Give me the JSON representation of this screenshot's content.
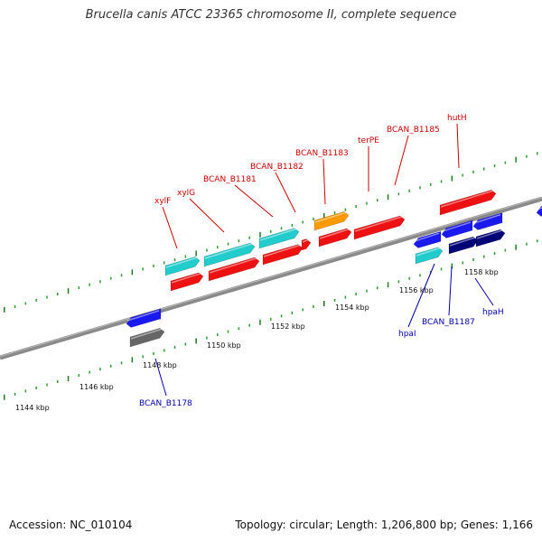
{
  "title": "Brucella canis ATCC 23365 chromosome II, complete sequence",
  "footer": {
    "accession": "Accession: NC_010104",
    "summary": "Topology: circular; Length: 1,206,800 bp; Genes: 1,166"
  },
  "colors": {
    "backbone": "#8a8a8a",
    "tick_major": "#1f7a1f",
    "tick_minor": "#2f9a2f",
    "label_top": "#cc0000",
    "label_bottom": "#0000aa",
    "cyan": "#22cccc",
    "red": "#ee1111",
    "orange": "#ff9900",
    "blue": "#1a1aee",
    "navy": "#000077",
    "gray": "#666666"
  },
  "ruler_labels": [
    "1144 kbp",
    "1146 kbp",
    "1148 kbp",
    "1150 kbp",
    "1152 kbp",
    "1154 kbp",
    "1156 kbp",
    "1158 kbp"
  ],
  "top_labels": [
    "xylF",
    "xylG",
    "BCAN_B1181",
    "BCAN_B1182",
    "BCAN_B1183",
    "terPE",
    "BCAN_B1185",
    "hutH"
  ],
  "bottom_labels": [
    "BCAN_B1178",
    "hpaI",
    "BCAN_B1187",
    "hpaH"
  ]
}
